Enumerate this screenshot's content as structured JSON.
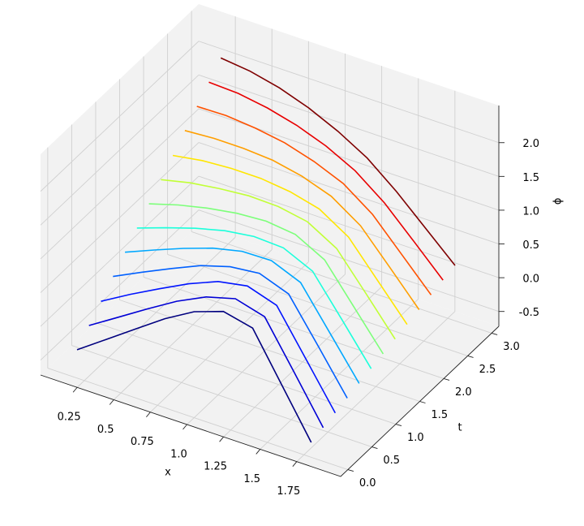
{
  "chart_data": {
    "type": "line3d",
    "xlabel": "x",
    "ylabel": "t",
    "zlabel": "ϕ",
    "x": [
      0.2,
      0.4,
      0.6,
      0.8,
      1.0,
      1.2,
      1.4,
      1.6,
      1.8
    ],
    "t": [
      0,
      0.25,
      0.5,
      0.75,
      1.0,
      1.25,
      1.5,
      1.75,
      2.0,
      2.25,
      2.5,
      2.75,
      3.0
    ],
    "series": [
      {
        "color": "#00007f",
        "values": [
          -0.3,
          0,
          0.3,
          0.6,
          0.85,
          1.0,
          0.9,
          0.2,
          -0.5
        ]
      },
      {
        "color": "#0000d5",
        "values": [
          -0.11,
          0.16,
          0.43,
          0.69,
          0.9,
          1.02,
          0.9,
          0.23,
          -0.45
        ]
      },
      {
        "color": "#0014ff",
        "values": [
          0.08,
          0.33,
          0.56,
          0.78,
          0.96,
          1.04,
          0.9,
          0.25,
          -0.4
        ]
      },
      {
        "color": "#0060ff",
        "values": [
          0.28,
          0.49,
          0.69,
          0.88,
          1.01,
          1.06,
          0.9,
          0.28,
          -0.35
        ]
      },
      {
        "color": "#00a8ff",
        "values": [
          0.47,
          0.65,
          0.82,
          0.97,
          1.07,
          1.08,
          0.9,
          0.3,
          -0.3
        ]
      },
      {
        "color": "#1cffdb",
        "values": [
          0.66,
          0.81,
          0.95,
          1.06,
          1.12,
          1.1,
          0.9,
          0.33,
          -0.25
        ]
      },
      {
        "color": "#7dff7a",
        "values": [
          0.85,
          0.98,
          1.08,
          1.15,
          1.18,
          1.13,
          0.9,
          0.35,
          -0.2
        ]
      },
      {
        "color": "#c1ff36",
        "values": [
          1.04,
          1.14,
          1.2,
          1.24,
          1.23,
          1.15,
          0.9,
          0.38,
          -0.15
        ]
      },
      {
        "color": "#ffe600",
        "values": [
          1.23,
          1.3,
          1.33,
          1.33,
          1.28,
          1.17,
          0.9,
          0.4,
          -0.1
        ]
      },
      {
        "color": "#ff9f00",
        "values": [
          1.43,
          1.46,
          1.46,
          1.43,
          1.34,
          1.19,
          0.9,
          0.43,
          -0.05
        ]
      },
      {
        "color": "#ff5200",
        "values": [
          1.62,
          1.63,
          1.59,
          1.52,
          1.39,
          1.21,
          0.9,
          0.45,
          0
        ]
      },
      {
        "color": "#e80000",
        "values": [
          1.81,
          1.79,
          1.72,
          1.61,
          1.45,
          1.23,
          0.9,
          0.48,
          0.05
        ]
      },
      {
        "color": "#7f0000",
        "values": [
          2.0,
          1.95,
          1.85,
          1.7,
          1.5,
          1.25,
          0.9,
          0.5,
          0.1
        ]
      }
    ],
    "xlim": [
      0.0,
      2.05
    ],
    "ylim": [
      -0.15,
      3.15
    ],
    "zlim": [
      -0.72,
      2.55
    ],
    "xticks": [
      0.25,
      0.5,
      0.75,
      1.0,
      1.25,
      1.5,
      1.75
    ],
    "yticks": [
      0.0,
      0.5,
      1.0,
      1.5,
      2.0,
      2.5,
      3.0
    ],
    "zticks": [
      -0.5,
      0.0,
      0.5,
      1.0,
      1.5,
      2.0
    ],
    "grid": true
  }
}
